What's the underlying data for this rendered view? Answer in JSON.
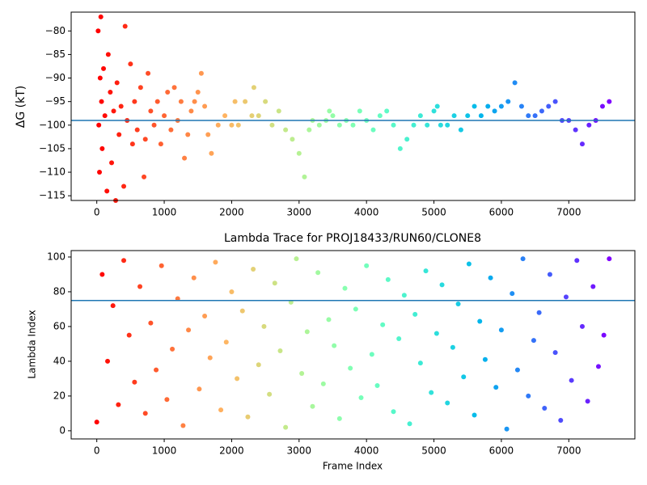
{
  "chart_data": [
    {
      "type": "scatter",
      "ylabel": "ΔG (kT)",
      "colormap": "rainbow_r",
      "hline": -99,
      "hline_color": "#1f77b4",
      "xlim": [
        -380,
        7980
      ],
      "ylim": [
        -116,
        -76
      ],
      "xticks": [
        0,
        1000,
        2000,
        3000,
        4000,
        5000,
        6000,
        7000
      ],
      "yticks": [
        {
          "value": -115,
          "label": "−115"
        },
        {
          "value": -110,
          "label": "−110"
        },
        {
          "value": -105,
          "label": "−105"
        },
        {
          "value": -100,
          "label": "−100"
        },
        {
          "value": -95,
          "label": "−95"
        },
        {
          "value": -90,
          "label": "−90"
        },
        {
          "value": -85,
          "label": "−85"
        },
        {
          "value": -80,
          "label": "−80"
        }
      ],
      "x": [
        20,
        30,
        40,
        50,
        60,
        70,
        80,
        100,
        120,
        150,
        170,
        200,
        220,
        250,
        280,
        300,
        330,
        360,
        400,
        420,
        450,
        500,
        530,
        560,
        600,
        650,
        700,
        720,
        760,
        800,
        850,
        900,
        950,
        1000,
        1050,
        1100,
        1150,
        1200,
        1250,
        1300,
        1350,
        1400,
        1450,
        1500,
        1550,
        1600,
        1650,
        1700,
        1800,
        1900,
        2000,
        2050,
        2100,
        2200,
        2300,
        2330,
        2400,
        2500,
        2600,
        2700,
        2800,
        2900,
        3000,
        3080,
        3150,
        3200,
        3300,
        3400,
        3450,
        3500,
        3600,
        3700,
        3800,
        3900,
        4000,
        4100,
        4200,
        4300,
        4400,
        4500,
        4600,
        4700,
        4800,
        4900,
        5000,
        5050,
        5100,
        5200,
        5300,
        5400,
        5500,
        5600,
        5700,
        5800,
        5900,
        6000,
        6100,
        6200,
        6300,
        6400,
        6500,
        6600,
        6700,
        6800,
        6900,
        7000,
        7100,
        7200,
        7300,
        7400,
        7500,
        7600
      ],
      "y": [
        -80,
        -100,
        -110,
        -90,
        -77,
        -95,
        -105,
        -88,
        -98,
        -114,
        -85,
        -93,
        -108,
        -97,
        -116,
        -91,
        -102,
        -96,
        -113,
        -79,
        -99,
        -87,
        -104,
        -95,
        -101,
        -92,
        -111,
        -103,
        -89,
        -97,
        -100,
        -95,
        -104,
        -98,
        -93,
        -101,
        -92,
        -99,
        -95,
        -107,
        -102,
        -97,
        -95,
        -93,
        -89,
        -96,
        -102,
        -106,
        -100,
        -98,
        -100,
        -95,
        -100,
        -95,
        -98,
        -92,
        -98,
        -95,
        -100,
        -97,
        -101,
        -103,
        -106,
        -111,
        -101,
        -99,
        -100,
        -99,
        -97,
        -98,
        -100,
        -99,
        -100,
        -97,
        -99,
        -101,
        -98,
        -97,
        -100,
        -105,
        -103,
        -100,
        -98,
        -100,
        -97,
        -96,
        -100,
        -100,
        -98,
        -101,
        -98,
        -96,
        -98,
        -96,
        -97,
        -96,
        -95,
        -91,
        -96,
        -98,
        -98,
        -97,
        -96,
        -95,
        -99,
        -99,
        -101,
        -104,
        -100,
        -99,
        -96,
        -95
      ]
    },
    {
      "type": "scatter",
      "title": "Lambda Trace for PROJ18433/RUN60/CLONE8",
      "xlabel": "Frame Index",
      "ylabel": "Lambda Index",
      "colormap": "rainbow_r",
      "hline": 75,
      "hline_color": "#1f77b4",
      "xlim": [
        -380,
        7980
      ],
      "ylim": [
        -4.7,
        103.7
      ],
      "xticks": [
        0,
        1000,
        2000,
        3000,
        4000,
        5000,
        6000,
        7000
      ],
      "yticks": [
        0,
        20,
        40,
        60,
        80,
        100
      ],
      "x": [
        0,
        80,
        160,
        240,
        320,
        400,
        480,
        560,
        640,
        720,
        800,
        880,
        960,
        1040,
        1120,
        1200,
        1280,
        1360,
        1440,
        1520,
        1600,
        1680,
        1760,
        1840,
        1920,
        2000,
        2080,
        2160,
        2240,
        2320,
        2400,
        2480,
        2560,
        2640,
        2720,
        2800,
        2880,
        2960,
        3040,
        3120,
        3200,
        3280,
        3360,
        3440,
        3520,
        3600,
        3680,
        3760,
        3840,
        3920,
        4000,
        4080,
        4160,
        4240,
        4320,
        4400,
        4480,
        4560,
        4640,
        4720,
        4800,
        4880,
        4960,
        5040,
        5120,
        5200,
        5280,
        5360,
        5440,
        5520,
        5600,
        5680,
        5760,
        5840,
        5920,
        6000,
        6080,
        6160,
        6240,
        6320,
        6400,
        6480,
        6560,
        6640,
        6720,
        6800,
        6880,
        6960,
        7040,
        7120,
        7200,
        7280,
        7360,
        7440,
        7520,
        7600
      ],
      "y": [
        5,
        90,
        40,
        72,
        15,
        98,
        55,
        28,
        83,
        10,
        62,
        35,
        95,
        18,
        47,
        76,
        3,
        58,
        88,
        24,
        66,
        42,
        97,
        12,
        51,
        80,
        30,
        69,
        8,
        93,
        38,
        60,
        21,
        85,
        46,
        2,
        74,
        99,
        33,
        57,
        14,
        91,
        27,
        64,
        49,
        7,
        82,
        36,
        70,
        19,
        95,
        44,
        26,
        61,
        87,
        11,
        53,
        78,
        4,
        67,
        39,
        92,
        22,
        56,
        84,
        16,
        48,
        73,
        31,
        96,
        9,
        63,
        41,
        88,
        25,
        58,
        1,
        79,
        35,
        99,
        20,
        52,
        68,
        13,
        90,
        45,
        6,
        77,
        29,
        98,
        60,
        17,
        83,
        37,
        55,
        99
      ]
    }
  ]
}
